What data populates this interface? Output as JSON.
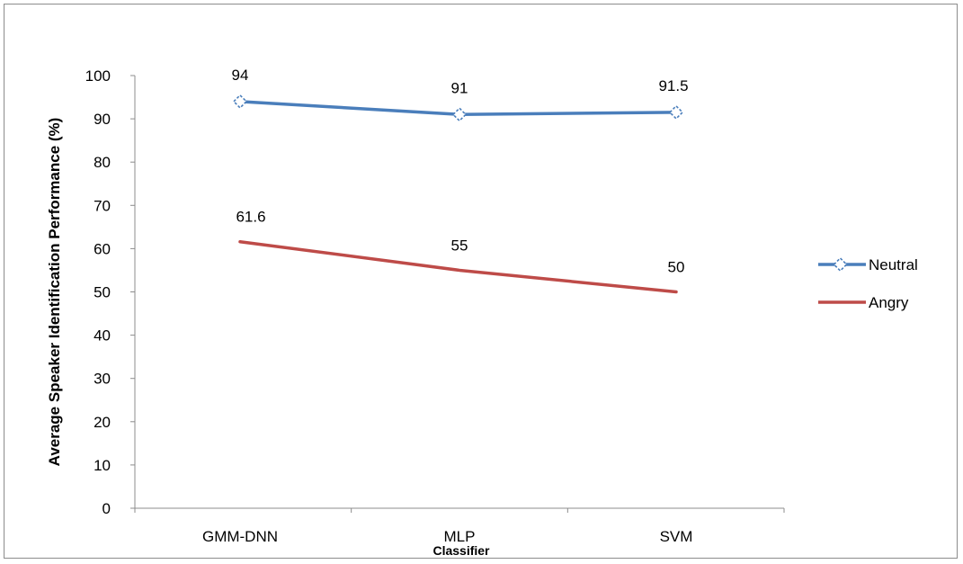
{
  "chart_data": {
    "type": "line",
    "categories": [
      "GMM-DNN",
      "MLP",
      "SVM"
    ],
    "series": [
      {
        "name": "Neutral",
        "values": [
          94,
          91,
          91.5
        ],
        "labels": [
          "94",
          "91",
          "91.5"
        ],
        "color": "#4a7ebb",
        "marker": "diamond-open"
      },
      {
        "name": "Angry",
        "values": [
          61.6,
          55,
          50
        ],
        "labels": [
          "61.6",
          "55",
          "50"
        ],
        "color": "#be4b48",
        "marker": "none"
      }
    ],
    "title": "",
    "xlabel": "Classifier",
    "ylabel": "Average Speaker Identification Performance (%)",
    "ylim": [
      0,
      100
    ],
    "yticks": [
      0,
      10,
      20,
      30,
      40,
      50,
      60,
      70,
      80,
      90,
      100
    ],
    "grid": false,
    "legend_position": "right"
  }
}
